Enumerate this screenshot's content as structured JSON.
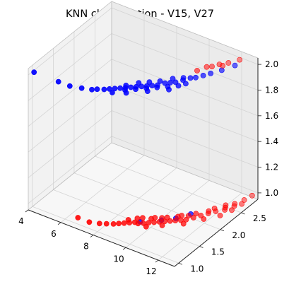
{
  "chart_data": {
    "type": "scatter",
    "projection": "3d",
    "title": "KNN classification - V15, V27",
    "xlabel": "",
    "ylabel": "",
    "zlabel": "",
    "xlim": [
      4,
      13
    ],
    "ylim": [
      0.9,
      2.9
    ],
    "zlim": [
      0.95,
      2.05
    ],
    "grid": true,
    "x_ticks": [
      "4",
      "6",
      "8",
      "10",
      "12"
    ],
    "y_ticks": [
      "1.0",
      "1.5",
      "2.0",
      "2.5"
    ],
    "z_ticks": [
      "1.0",
      "1.2",
      "1.4",
      "1.6",
      "1.8",
      "2.0"
    ],
    "colors": {
      "class_blue": "#0000ff",
      "class_red": "#ff0000"
    },
    "series": [
      {
        "color": "#0000ff",
        "points": [
          [
            4.1,
            1.0,
            2.0
          ],
          [
            5.6,
            1.0,
            2.0
          ],
          [
            6.3,
            1.0,
            2.0
          ],
          [
            6.9,
            1.05,
            2.0
          ],
          [
            7.4,
            1.1,
            2.0
          ],
          [
            7.6,
            1.15,
            2.0
          ],
          [
            7.9,
            1.2,
            2.0
          ],
          [
            8.1,
            1.25,
            2.0
          ],
          [
            8.3,
            1.3,
            2.0
          ],
          [
            8.5,
            1.35,
            2.0
          ],
          [
            8.7,
            1.4,
            2.0
          ],
          [
            8.9,
            1.45,
            2.0
          ],
          [
            9.1,
            1.5,
            2.0
          ],
          [
            9.3,
            1.55,
            2.0
          ],
          [
            9.5,
            1.6,
            2.0
          ],
          [
            9.7,
            1.65,
            2.0
          ],
          [
            9.9,
            1.7,
            2.0
          ],
          [
            10.1,
            1.8,
            2.0
          ],
          [
            10.3,
            1.85,
            2.0
          ],
          [
            10.5,
            1.9,
            2.0
          ],
          [
            10.7,
            2.0,
            2.0
          ],
          [
            10.9,
            2.1,
            2.0
          ],
          [
            11.1,
            2.15,
            2.0
          ],
          [
            11.3,
            2.25,
            2.0
          ],
          [
            11.5,
            2.35,
            2.0
          ],
          [
            11.8,
            2.5,
            2.0
          ],
          [
            12.1,
            2.7,
            2.0
          ],
          [
            8.4,
            1.2,
            2.0
          ],
          [
            8.8,
            1.35,
            2.0
          ],
          [
            9.2,
            1.45,
            2.0
          ],
          [
            9.6,
            1.55,
            2.0
          ],
          [
            10.0,
            1.65,
            2.0
          ],
          [
            10.4,
            1.75,
            2.0
          ],
          [
            10.8,
            1.85,
            2.0
          ],
          [
            8.6,
            1.45,
            2.0
          ],
          [
            9.0,
            1.6,
            2.0
          ],
          [
            9.4,
            1.7,
            2.0
          ],
          [
            9.8,
            1.8,
            2.0
          ],
          [
            10.2,
            1.95,
            2.0
          ],
          [
            10.6,
            2.05,
            2.0
          ],
          [
            9.0,
            1.3,
            2.0
          ],
          [
            9.8,
            1.5,
            2.0
          ],
          [
            10.6,
            1.7,
            2.0
          ],
          [
            11.0,
            1.95,
            2.0
          ],
          [
            10.4,
            1.6,
            1.0
          ],
          [
            10.9,
            1.75,
            1.0
          ],
          [
            9.6,
            1.4,
            1.0
          ],
          [
            11.3,
            1.95,
            1.0
          ]
        ]
      },
      {
        "color": "#ff0000",
        "points": [
          [
            11.0,
            2.45,
            2.0
          ],
          [
            11.4,
            2.6,
            2.0
          ],
          [
            11.7,
            2.7,
            2.0
          ],
          [
            12.0,
            2.85,
            2.0
          ],
          [
            10.8,
            2.3,
            2.0
          ],
          [
            11.2,
            2.5,
            2.0
          ],
          [
            11.6,
            2.6,
            2.0
          ],
          [
            6.8,
            1.0,
            1.0
          ],
          [
            7.5,
            1.0,
            1.0
          ],
          [
            8.0,
            1.05,
            1.0
          ],
          [
            8.3,
            1.1,
            1.0
          ],
          [
            8.6,
            1.15,
            1.0
          ],
          [
            8.8,
            1.2,
            1.0
          ],
          [
            9.0,
            1.25,
            1.0
          ],
          [
            9.2,
            1.3,
            1.0
          ],
          [
            9.4,
            1.35,
            1.0
          ],
          [
            9.6,
            1.35,
            1.0
          ],
          [
            9.8,
            1.4,
            1.0
          ],
          [
            10.0,
            1.45,
            1.0
          ],
          [
            10.2,
            1.5,
            1.0
          ],
          [
            10.4,
            1.55,
            1.0
          ],
          [
            10.6,
            1.6,
            1.0
          ],
          [
            10.8,
            1.65,
            1.0
          ],
          [
            11.0,
            1.7,
            1.0
          ],
          [
            11.2,
            1.75,
            1.0
          ],
          [
            11.4,
            1.8,
            1.0
          ],
          [
            11.6,
            1.9,
            1.0
          ],
          [
            11.8,
            2.0,
            1.0
          ],
          [
            12.0,
            2.1,
            1.0
          ],
          [
            12.2,
            2.2,
            1.0
          ],
          [
            12.4,
            2.35,
            1.0
          ],
          [
            12.6,
            2.5,
            1.0
          ],
          [
            12.8,
            2.65,
            1.0
          ],
          [
            12.9,
            2.8,
            1.0
          ],
          [
            9.0,
            1.35,
            1.0
          ],
          [
            9.5,
            1.5,
            1.0
          ],
          [
            10.0,
            1.6,
            1.0
          ],
          [
            10.5,
            1.7,
            1.0
          ],
          [
            11.0,
            1.85,
            1.0
          ],
          [
            11.5,
            2.0,
            1.0
          ],
          [
            12.0,
            2.25,
            1.0
          ],
          [
            12.3,
            2.4,
            1.0
          ],
          [
            9.3,
            1.45,
            1.0
          ],
          [
            9.9,
            1.55,
            1.0
          ],
          [
            10.3,
            1.65,
            1.0
          ],
          [
            10.9,
            1.8,
            1.0
          ],
          [
            11.3,
            1.9,
            1.0
          ],
          [
            11.9,
            2.15,
            1.0
          ],
          [
            12.5,
            2.3,
            1.0
          ],
          [
            12.7,
            2.45,
            1.0
          ],
          [
            10.1,
            1.35,
            1.0
          ],
          [
            10.7,
            1.5,
            1.0
          ],
          [
            11.5,
            1.7,
            1.0
          ],
          [
            12.1,
            1.95,
            1.0
          ],
          [
            12.6,
            2.15,
            1.0
          ],
          [
            12.8,
            2.35,
            1.0
          ],
          [
            12.9,
            2.55,
            1.0
          ]
        ]
      }
    ]
  }
}
